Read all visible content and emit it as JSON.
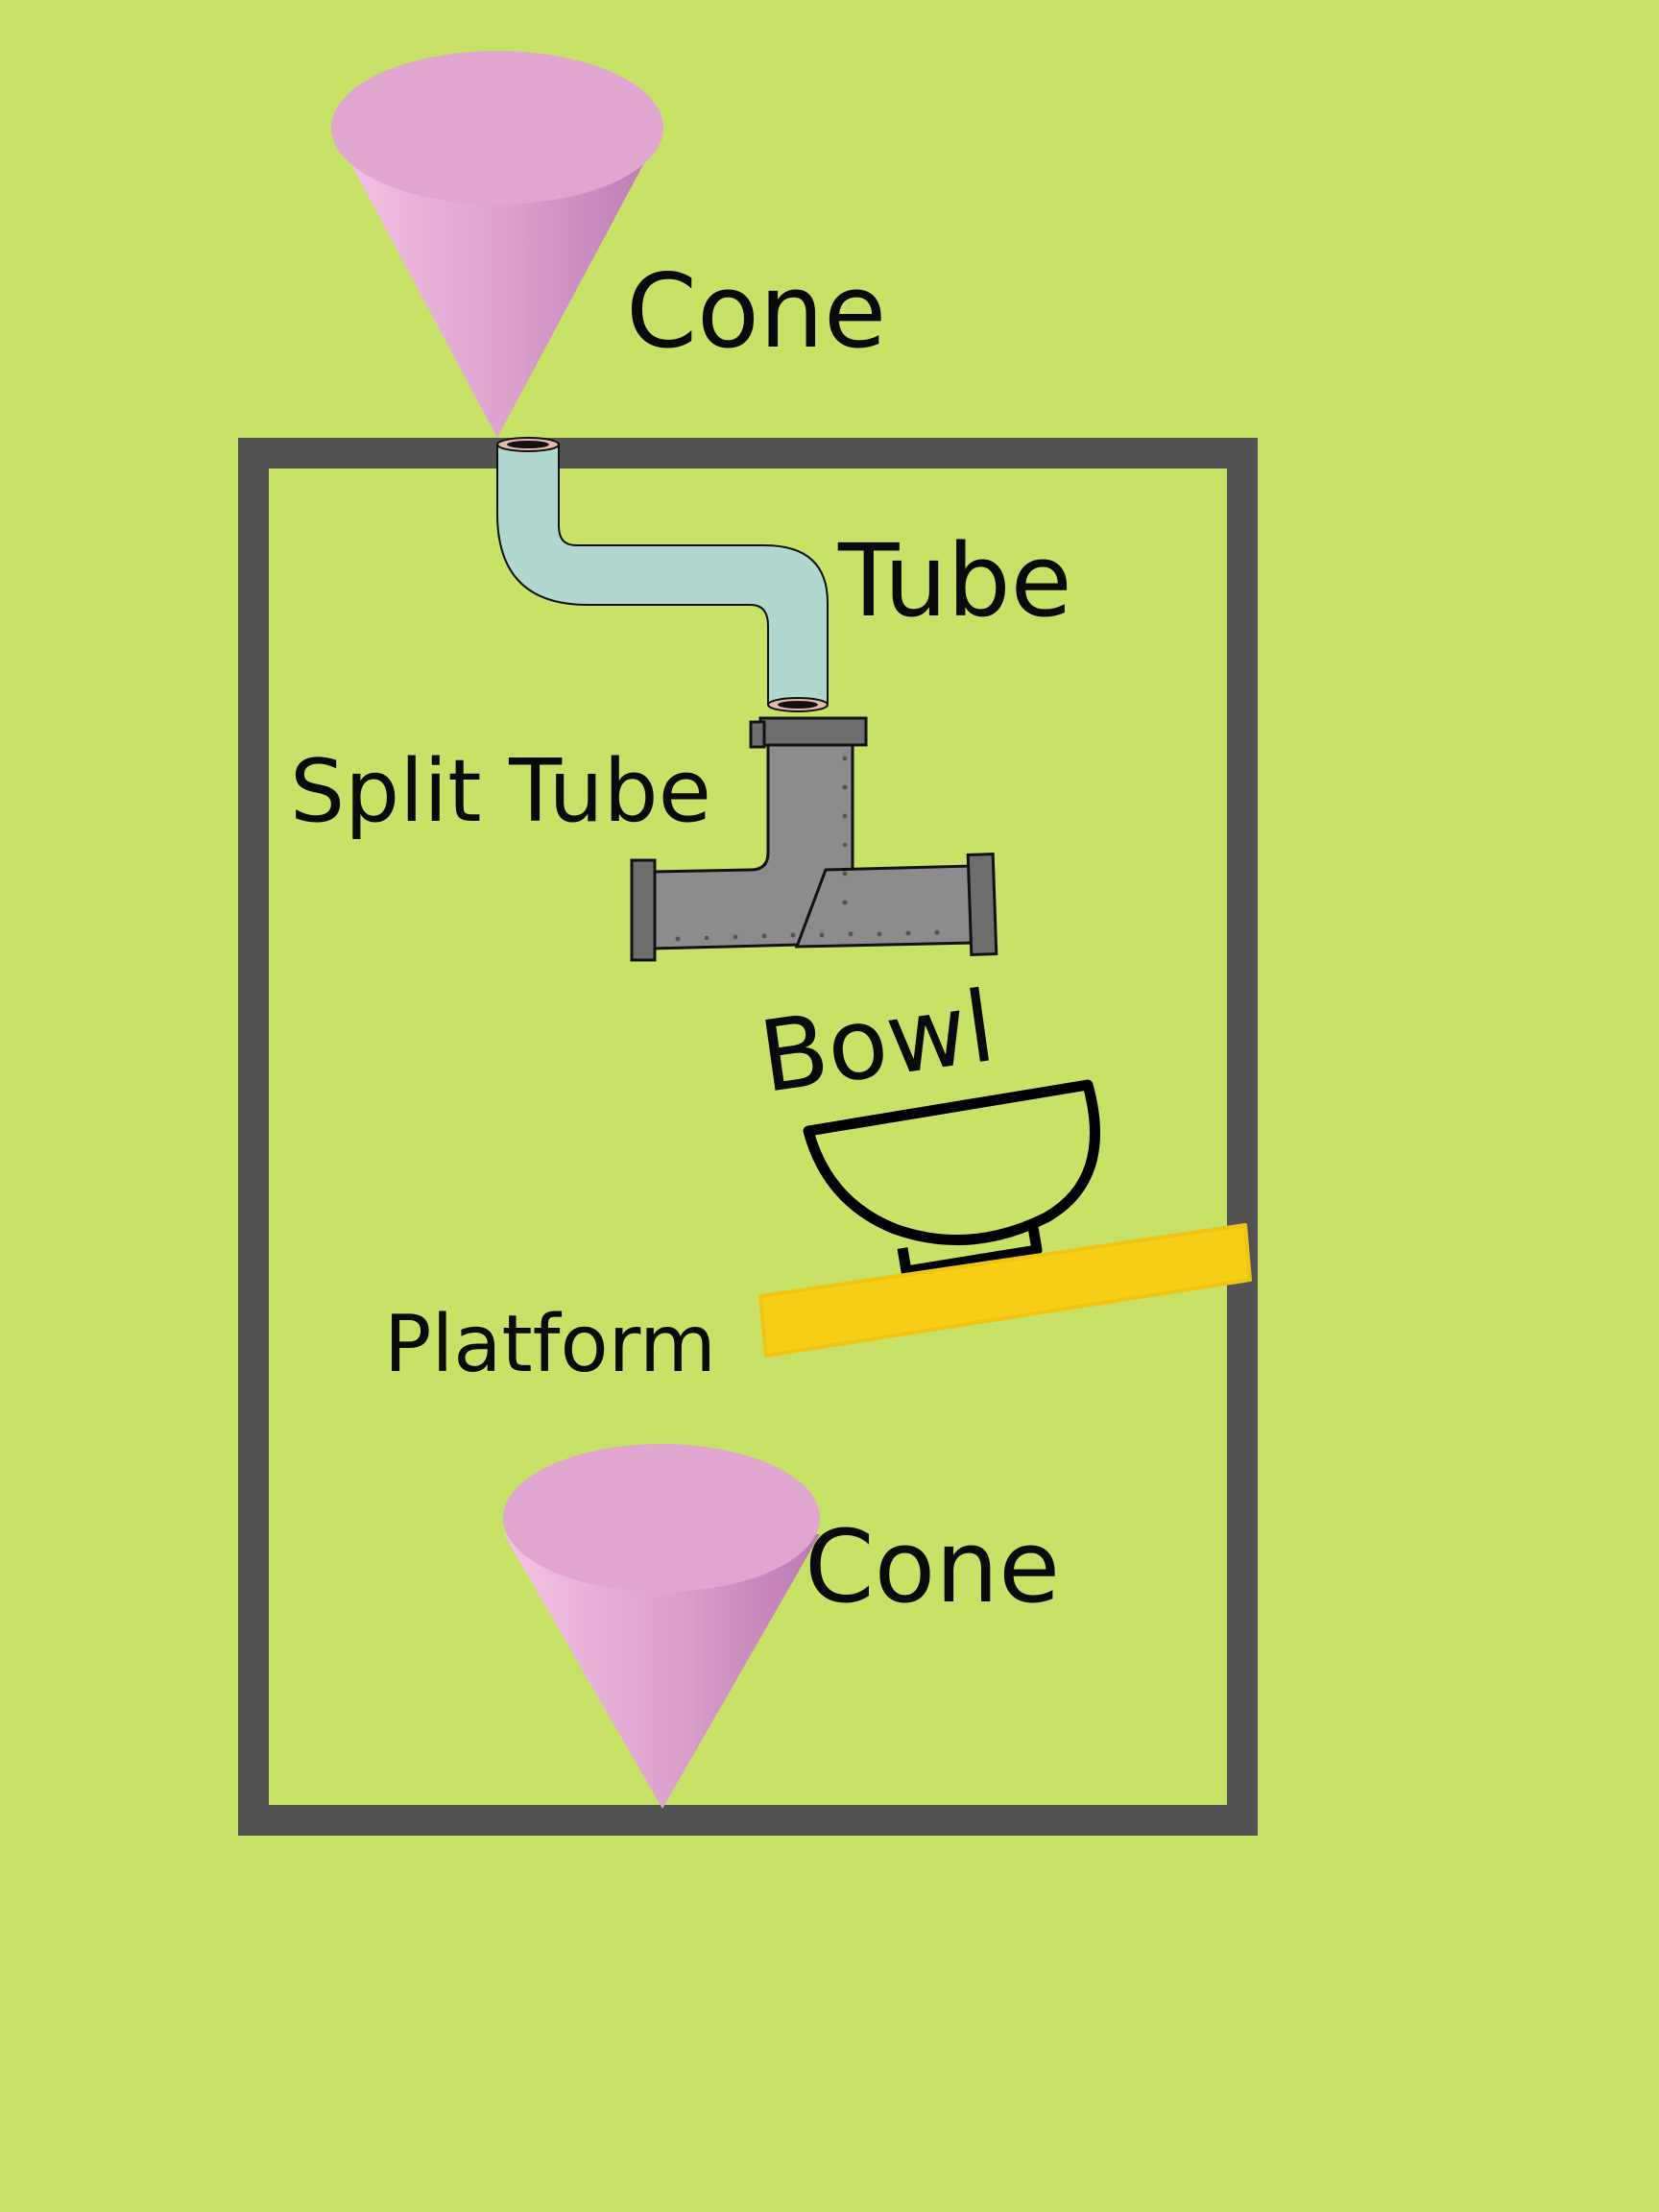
{
  "labels": {
    "cone_top": "Cone",
    "tube": "Tube",
    "split_tube": "Split Tube",
    "bowl": "Bowl",
    "platform": "Platform",
    "cone_bottom": "Cone"
  },
  "colors": {
    "background": "#c8e267",
    "frame": "#525252",
    "cone": "#e0a6cf",
    "tube": "#b0d8cf",
    "split_tube": "#8c8c8c",
    "bowl_outline": "#000000",
    "platform": "#f8cf17"
  }
}
